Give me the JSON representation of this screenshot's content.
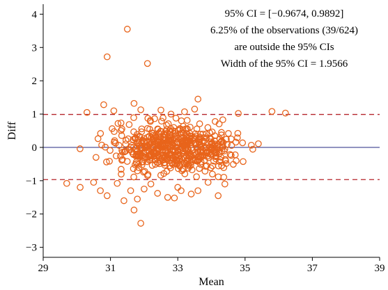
{
  "chart_data": {
    "type": "scatter",
    "xlabel": "Mean",
    "ylabel": "Diff",
    "xlim": [
      29,
      39
    ],
    "ylim": [
      -3.3,
      4.3
    ],
    "xticks": [
      29,
      31,
      33,
      35,
      37,
      39
    ],
    "yticks": [
      -3,
      -2,
      -1,
      0,
      1,
      2,
      3,
      4
    ],
    "xtick_labels": [
      "29",
      "31",
      "33",
      "35",
      "37",
      "39"
    ],
    "ytick_labels": [
      "−3",
      "−2",
      "−1",
      "0",
      "1",
      "2",
      "3",
      "4"
    ],
    "mean_line": {
      "y": 0,
      "color": "#3b3f8f"
    },
    "limit_lines": [
      {
        "y": 0.9892,
        "color": "#b5242a"
      },
      {
        "y": -0.9674,
        "color": "#b5242a"
      }
    ],
    "marker_color": "#e8641b",
    "annotations": [
      "95% CI = [−0.9674, 0.9892]",
      "6.25% of the observations (39/624)",
      "are outside the 95% CIs",
      "Width of the 95% CI = 1.9566"
    ],
    "outliers": [
      {
        "x": 31.5,
        "y": 3.55
      },
      {
        "x": 30.9,
        "y": 2.72
      },
      {
        "x": 32.1,
        "y": 2.52
      },
      {
        "x": 31.7,
        "y": 1.32
      },
      {
        "x": 33.6,
        "y": 1.45
      },
      {
        "x": 30.8,
        "y": 1.28
      },
      {
        "x": 35.8,
        "y": 1.08
      },
      {
        "x": 33.2,
        "y": 1.07
      },
      {
        "x": 32.5,
        "y": 1.12
      },
      {
        "x": 31.1,
        "y": 1.1
      },
      {
        "x": 31.9,
        "y": 1.13
      },
      {
        "x": 33.5,
        "y": 1.15
      },
      {
        "x": 29.7,
        "y": -1.08
      },
      {
        "x": 30.1,
        "y": -1.2
      },
      {
        "x": 30.9,
        "y": -1.45
      },
      {
        "x": 30.7,
        "y": -1.3
      },
      {
        "x": 31.6,
        "y": -1.3
      },
      {
        "x": 31.2,
        "y": -1.08
      },
      {
        "x": 32.4,
        "y": -1.38
      },
      {
        "x": 32.7,
        "y": -1.5
      },
      {
        "x": 33.0,
        "y": -1.2
      },
      {
        "x": 33.4,
        "y": -1.4
      },
      {
        "x": 33.6,
        "y": -1.3
      },
      {
        "x": 33.9,
        "y": -1.05
      },
      {
        "x": 32.9,
        "y": -1.52
      },
      {
        "x": 31.7,
        "y": -1.88
      },
      {
        "x": 31.9,
        "y": -2.28
      },
      {
        "x": 34.4,
        "y": -1.1
      },
      {
        "x": 31.4,
        "y": -1.6
      },
      {
        "x": 31.8,
        "y": -1.55
      },
      {
        "x": 32.2,
        "y": -1.1
      },
      {
        "x": 30.5,
        "y": -1.05
      },
      {
        "x": 33.1,
        "y": -1.3
      },
      {
        "x": 34.8,
        "y": 1.02
      },
      {
        "x": 32.8,
        "y": 1.0
      },
      {
        "x": 36.2,
        "y": 1.03
      },
      {
        "x": 30.3,
        "y": 1.05
      },
      {
        "x": 32.0,
        "y": -1.25
      },
      {
        "x": 34.2,
        "y": -1.45
      }
    ],
    "cluster": {
      "count": 585,
      "x_center": 32.9,
      "x_spread": 1.45,
      "x_range": [
        30.0,
        36.3
      ],
      "y_sd": 0.36,
      "y_range": [
        -0.95,
        0.97
      ]
    }
  }
}
